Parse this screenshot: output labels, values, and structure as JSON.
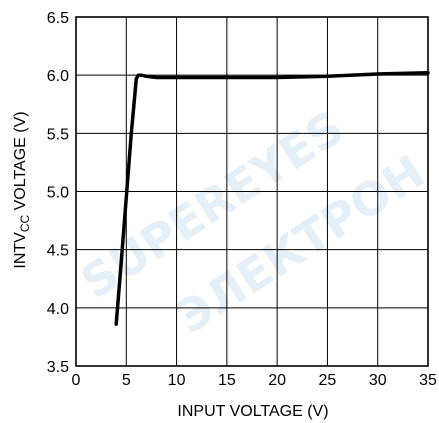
{
  "chart_data": {
    "type": "line",
    "title": "",
    "xlabel": "INPUT VOLTAGE (V)",
    "ylabel": {
      "prefix": "INTV",
      "subscript": "CC",
      "suffix": " VOLTAGE (V)"
    },
    "xlim": [
      0,
      35
    ],
    "ylim": [
      3.5,
      6.5
    ],
    "xticks": [
      "0",
      "5",
      "10",
      "15",
      "20",
      "25",
      "30",
      "35"
    ],
    "yticks": [
      "3.5",
      "4.0",
      "4.5",
      "5.0",
      "5.5",
      "6.0",
      "6.5"
    ],
    "grid": true,
    "series": [
      {
        "x": [
          4.0,
          4.5,
          5.0,
          5.5,
          6.0,
          6.2,
          6.5,
          7.0,
          8.0,
          10.0,
          15.0,
          20.0,
          25.0,
          30.0,
          35.0
        ],
        "y": [
          3.86,
          4.4,
          4.95,
          5.5,
          5.97,
          6.0,
          6.0,
          5.99,
          5.98,
          5.98,
          5.98,
          5.98,
          5.99,
          6.01,
          6.02
        ]
      }
    ]
  },
  "watermark": "SUPEREYES"
}
